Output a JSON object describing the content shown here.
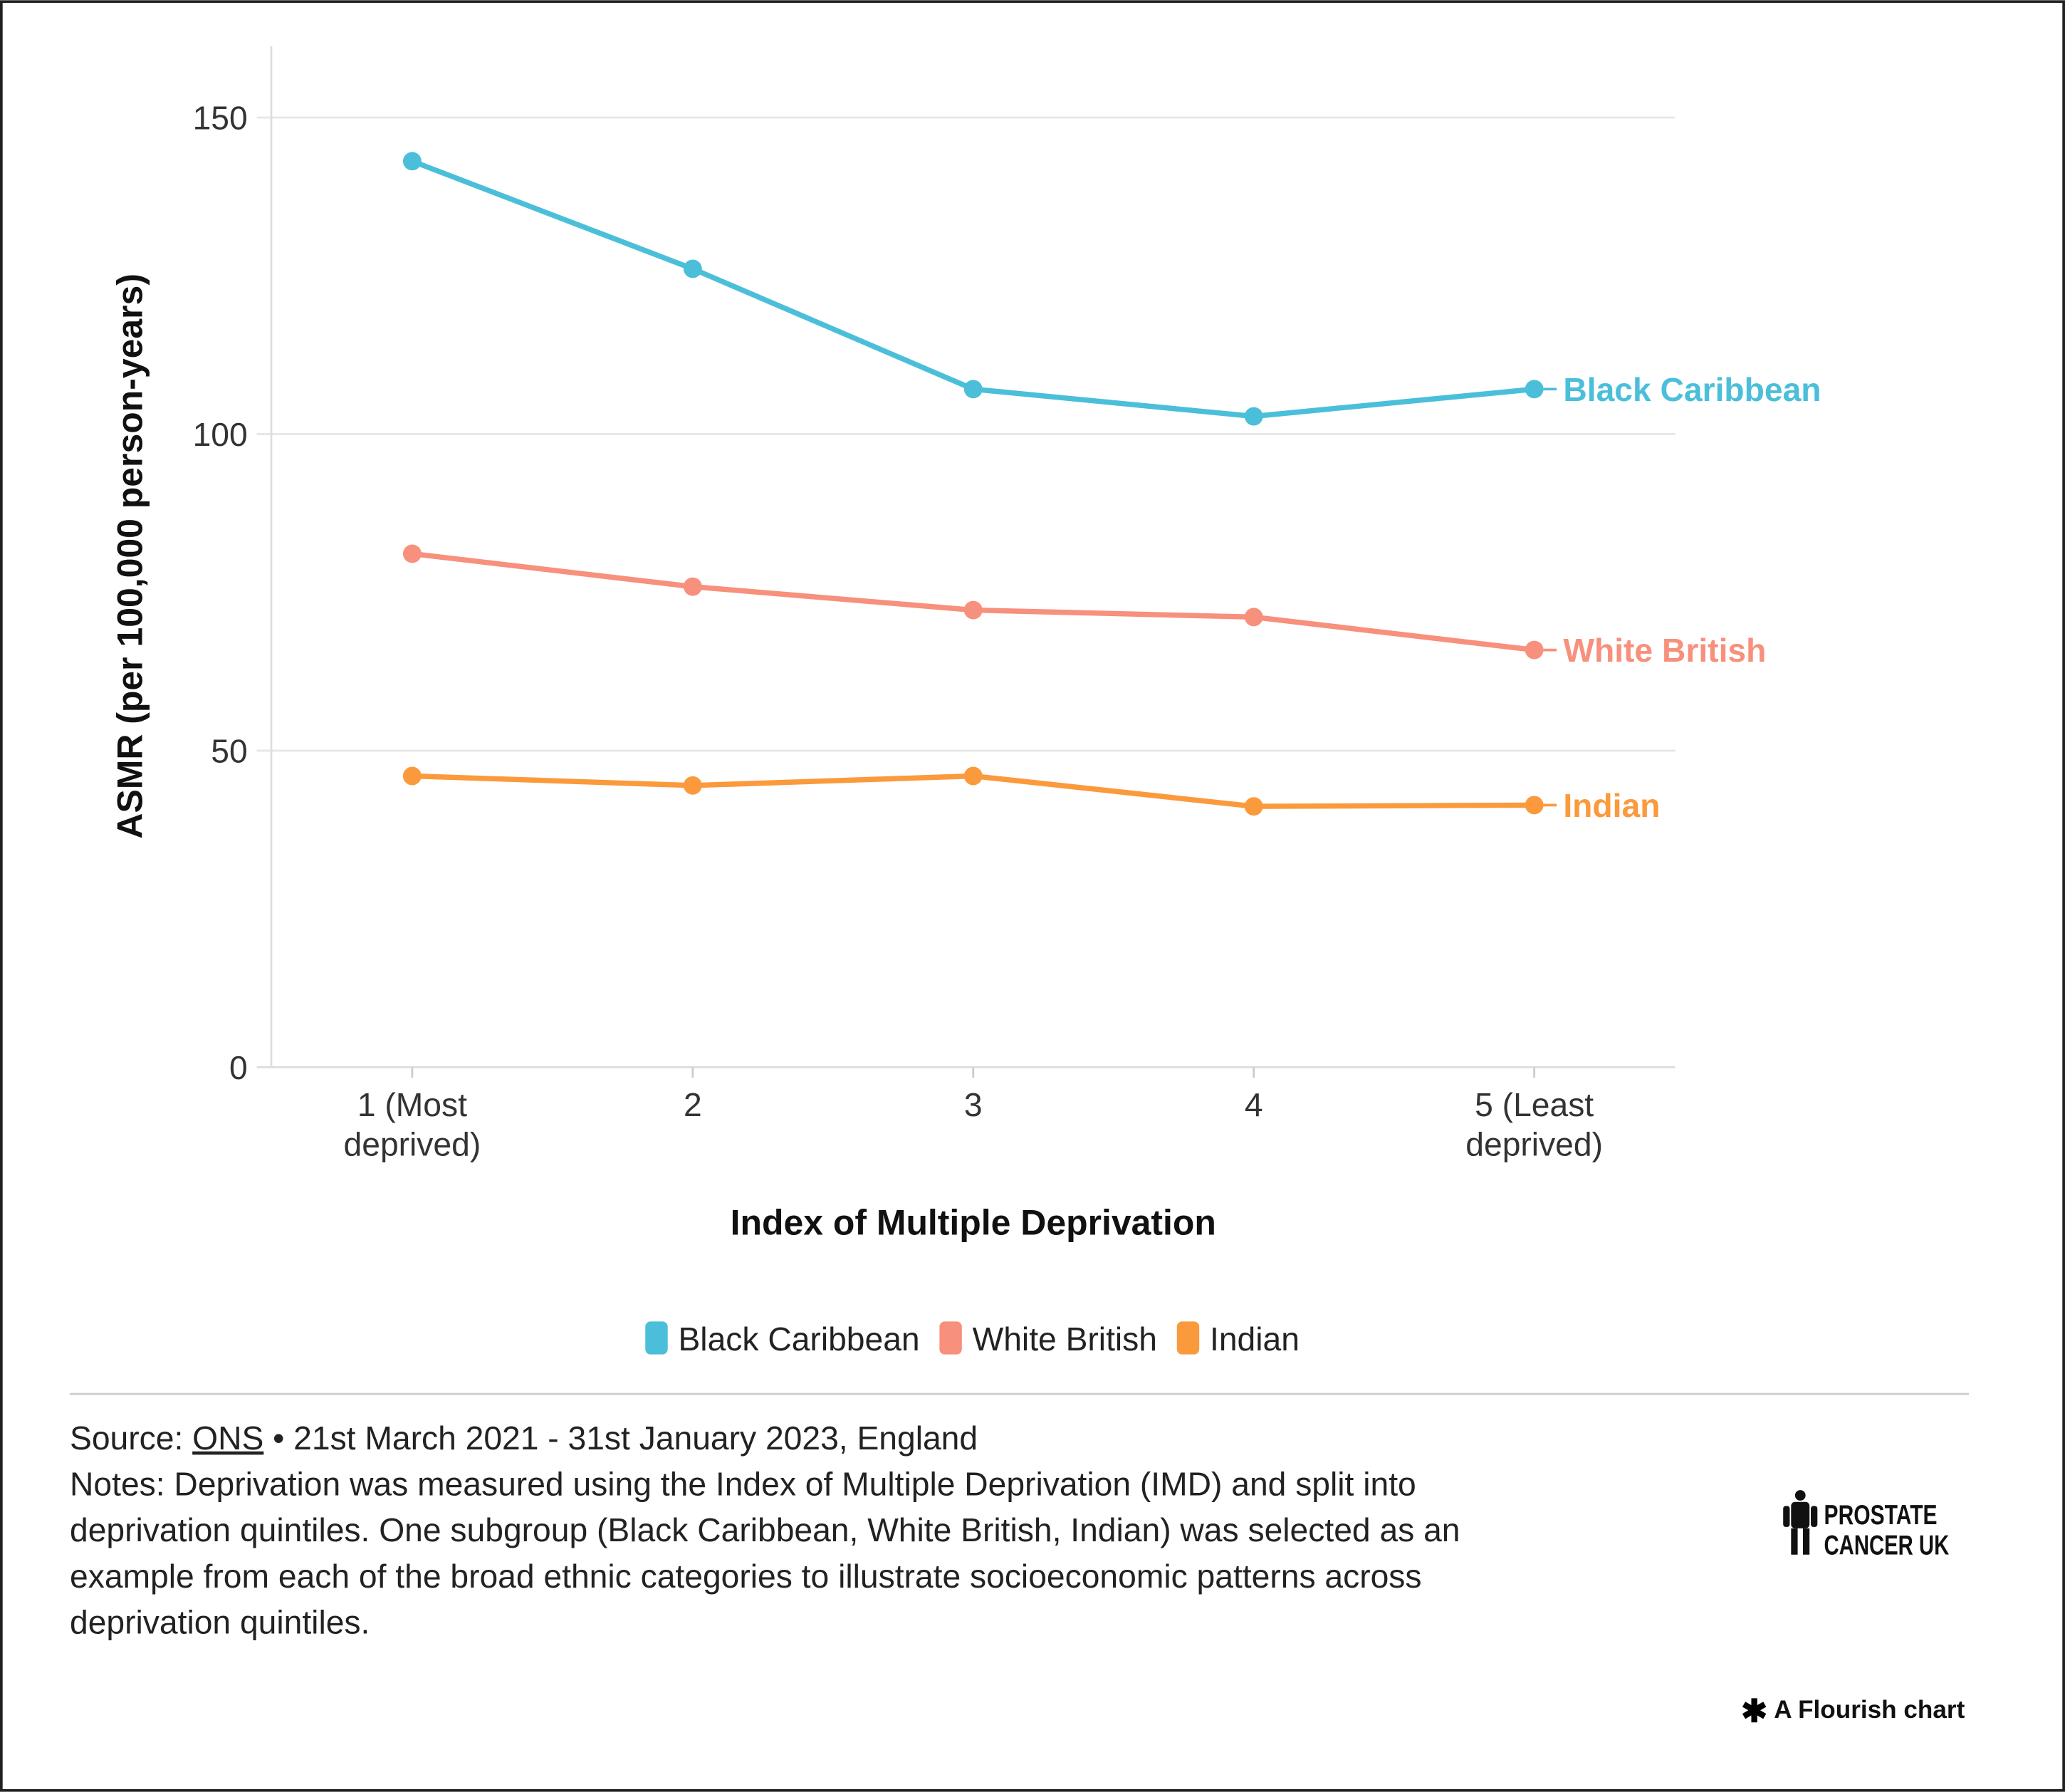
{
  "chart_data": {
    "type": "line",
    "title": "",
    "xlabel": "Index of Multiple Deprivation",
    "ylabel": "ASMR (per 100,000 person-years)",
    "categories": [
      [
        "1 (Most",
        "deprived)"
      ],
      [
        "2"
      ],
      [
        "3"
      ],
      [
        "4"
      ],
      [
        "5 (Least",
        "deprived)"
      ]
    ],
    "ylim": [
      0,
      160
    ],
    "yticks": [
      "0",
      "50",
      "100",
      "150"
    ],
    "ytick_values": [
      0,
      50,
      100,
      150
    ],
    "grid": true,
    "legend_position": "bottom",
    "series": [
      {
        "name": "Black Caribbean",
        "color": "#4bbfd9",
        "values": [
          143.1,
          126.1,
          107.1,
          102.8,
          107.1
        ]
      },
      {
        "name": "White British",
        "color": "#f7907c",
        "values": [
          81.1,
          75.9,
          72.2,
          71.1,
          65.9
        ]
      },
      {
        "name": "Indian",
        "color": "#fb9a3c",
        "values": [
          46.0,
          44.5,
          46.0,
          41.2,
          41.4
        ]
      }
    ]
  },
  "footer": {
    "source_prefix": "Source: ",
    "source_link": "ONS",
    "source_suffix": " • 21st March 2021 - 31st January 2023, England",
    "notes": [
      "Notes: Deprivation was measured using the Index of Multiple Deprivation (IMD) and split into",
      "deprivation quintiles. One subgroup (Black Caribbean, White British, Indian) was selected as an",
      "example from each of the broad ethnic categories to illustrate socioeconomic patterns across",
      "deprivation quintiles."
    ],
    "logo": [
      "PROSTATE",
      "CANCER UK"
    ],
    "credit": "A Flourish chart"
  }
}
